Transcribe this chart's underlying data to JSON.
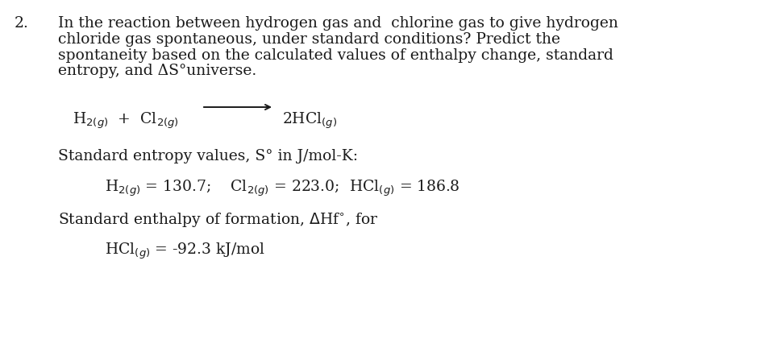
{
  "background_color": "#ffffff",
  "number": "2.",
  "paragraph_line1": "In the reaction between hydrogen gas and  chlorine gas to give hydrogen",
  "paragraph_line2": "chloride gas spontaneous, under standard conditions? Predict the",
  "paragraph_line3": "spontaneity based on the calculated values of enthalpy change, standard",
  "paragraph_line4": "entropy, and ΔS°universe.",
  "entropy_label": "Standard entropy values, S° in J/mol-K:",
  "enthalpy_label": "Standard enthalpy of formation, ΔHf°, for",
  "font_family": "DejaVu Serif",
  "main_fontsize": 13.5,
  "text_color": "#1a1a1a",
  "figwidth": 9.45,
  "figheight": 4.47,
  "dpi": 100
}
